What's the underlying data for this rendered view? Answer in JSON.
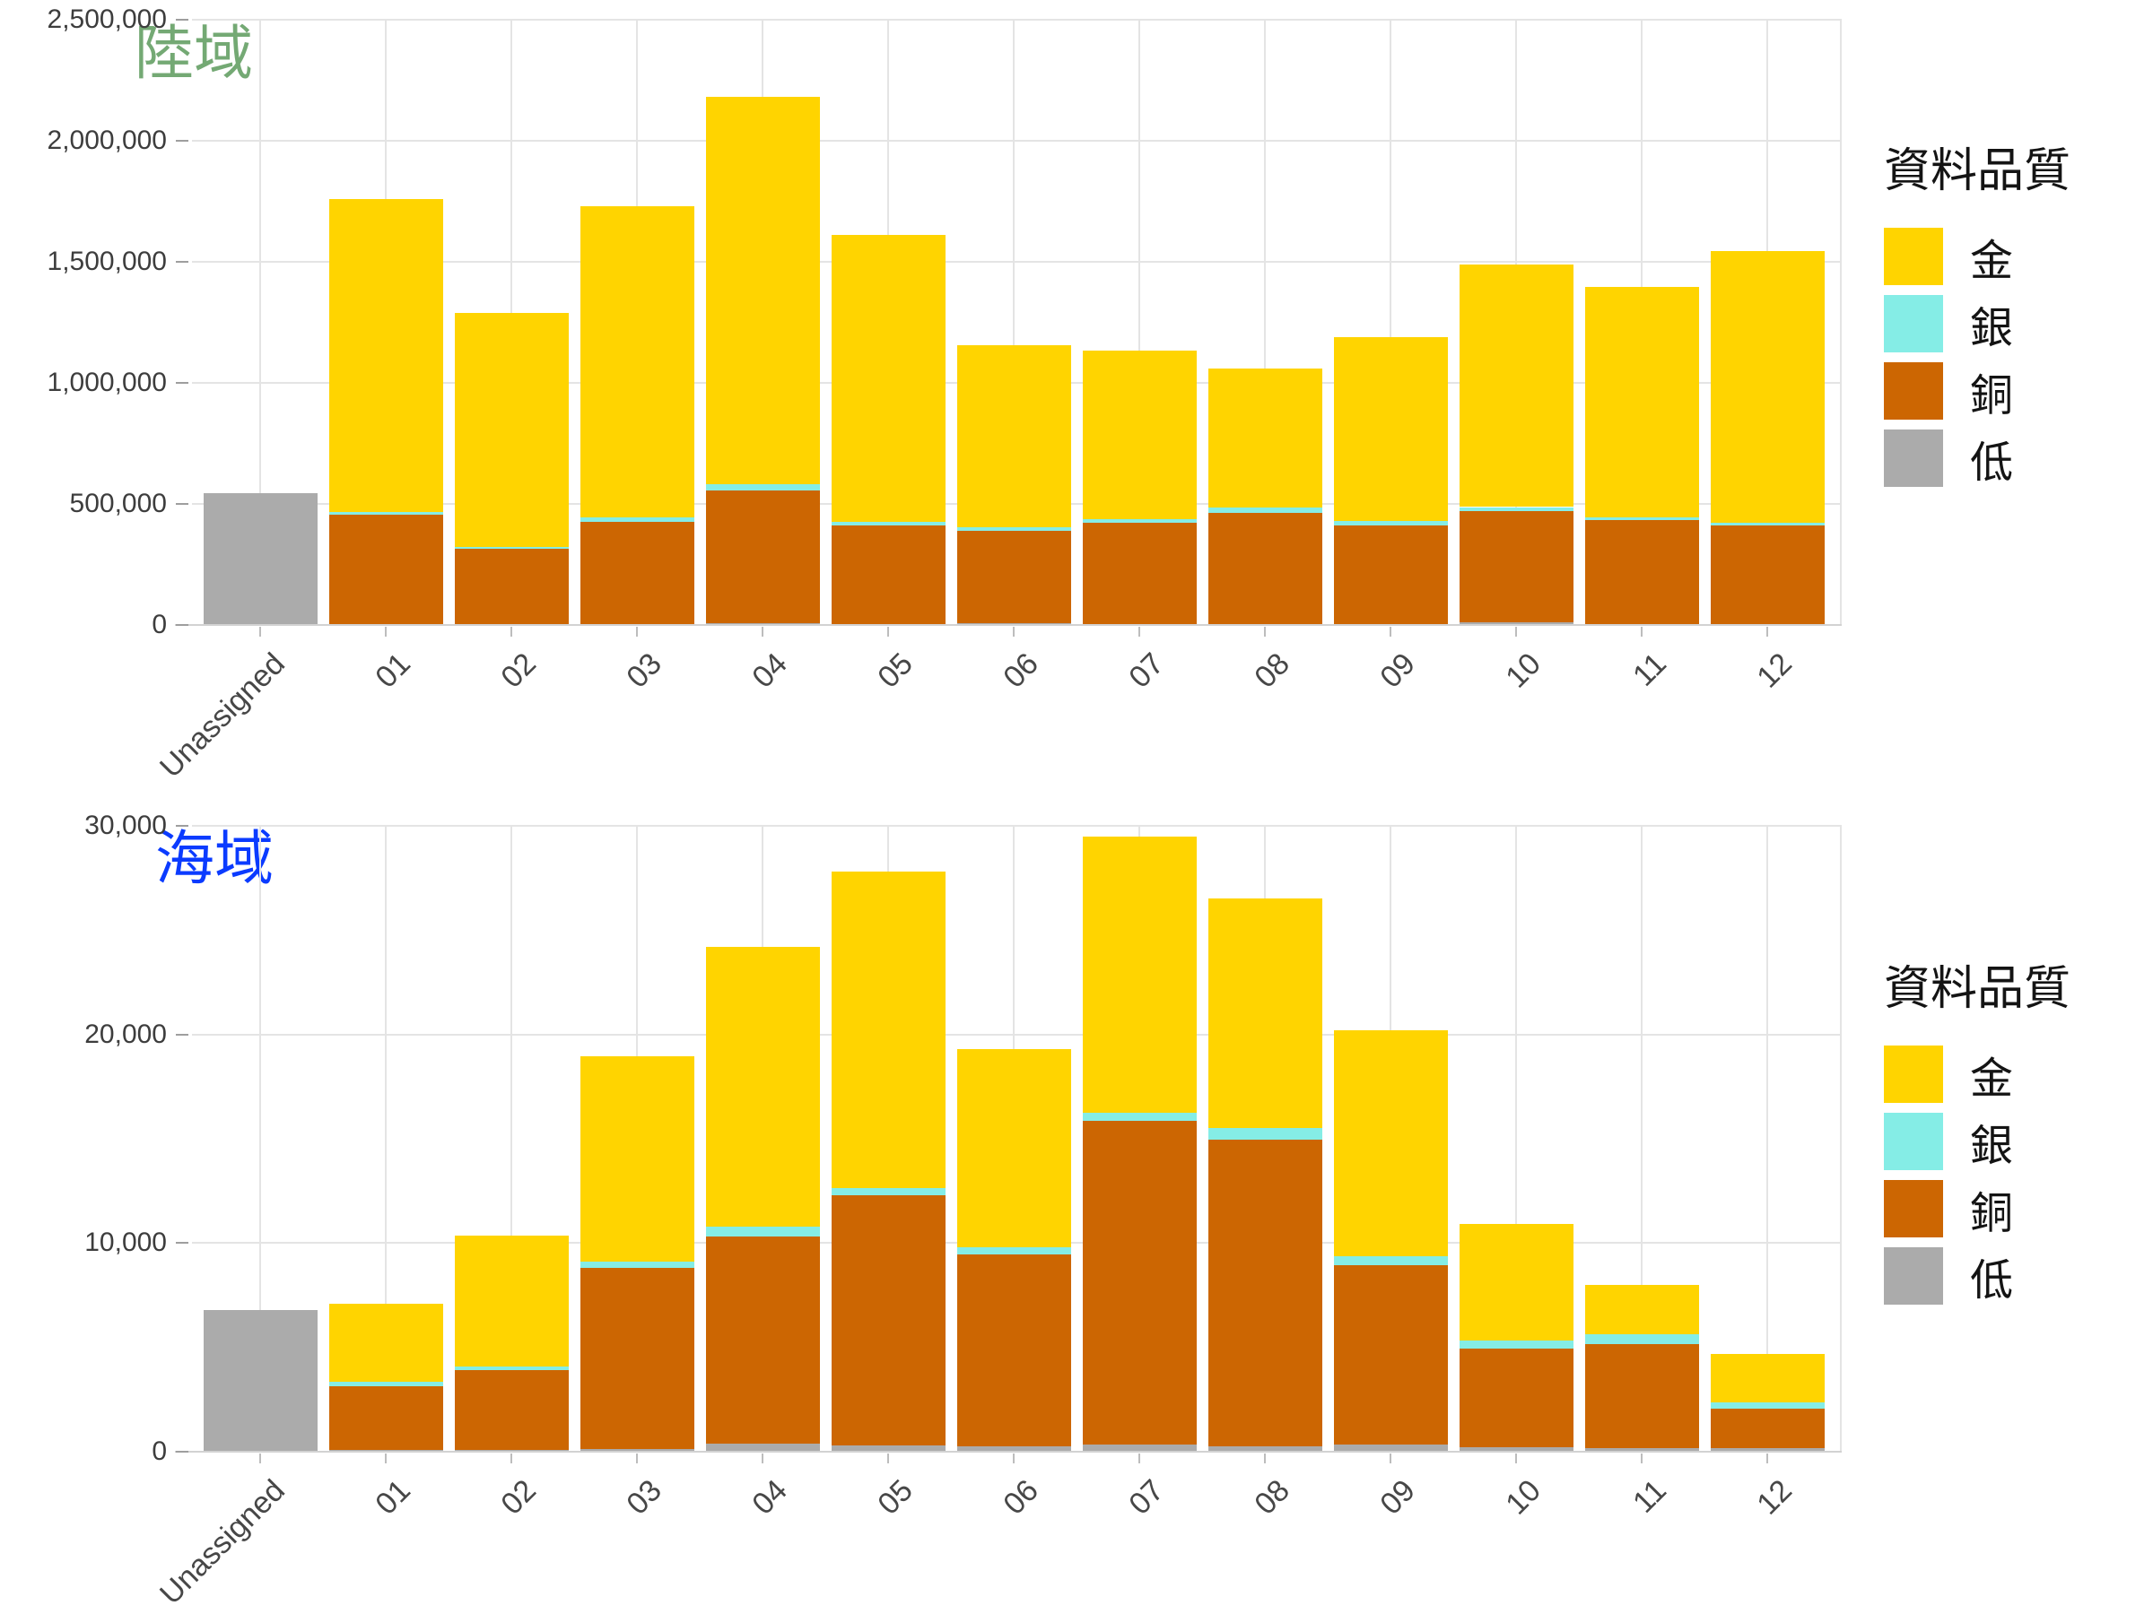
{
  "chart_data": [
    {
      "type": "bar",
      "stacked": true,
      "title": "陸域",
      "title_color": "#74a974",
      "legend": {
        "title": "資料品質",
        "items": [
          "金",
          "銀",
          "銅",
          "低"
        ]
      },
      "categories": [
        "Unassigned",
        "01",
        "02",
        "03",
        "04",
        "05",
        "06",
        "07",
        "08",
        "09",
        "10",
        "11",
        "12"
      ],
      "ylim": [
        0,
        2500000
      ],
      "grid": true,
      "legend_position": "right",
      "y_ticks": [
        {
          "value": 0,
          "label": "0"
        },
        {
          "value": 500000,
          "label": "500,000"
        },
        {
          "value": 1000000,
          "label": "1,000,000"
        },
        {
          "value": 1500000,
          "label": "1,500,000"
        },
        {
          "value": 2000000,
          "label": "2,000,000"
        },
        {
          "value": 2500000,
          "label": "2,500,000"
        }
      ],
      "series": [
        {
          "name": "低",
          "key": "low",
          "color": "#ababab",
          "values": [
            545000,
            0,
            0,
            0,
            8000,
            0,
            8000,
            0,
            0,
            0,
            10000,
            0,
            0
          ]
        },
        {
          "name": "銅",
          "key": "copper",
          "color": "#cc6602",
          "values": [
            0,
            455000,
            313000,
            426000,
            548000,
            410000,
            382000,
            422000,
            462000,
            410000,
            462000,
            435000,
            412000
          ]
        },
        {
          "name": "銀",
          "key": "silver",
          "color": "#85ede6",
          "values": [
            0,
            13000,
            10000,
            17000,
            26000,
            15000,
            13000,
            16000,
            25000,
            20000,
            15000,
            10000,
            10000
          ]
        },
        {
          "name": "金",
          "key": "gold",
          "color": "#ffd400",
          "values": [
            0,
            1292000,
            967000,
            1287000,
            1598000,
            1185000,
            752000,
            697000,
            573000,
            760000,
            1003000,
            950000,
            1123000
          ]
        }
      ],
      "totals": [
        545000,
        1760000,
        1290000,
        1730000,
        2180000,
        1610000,
        1155000,
        1135000,
        1060000,
        1190000,
        1490000,
        1395000,
        1545000
      ]
    },
    {
      "type": "bar",
      "stacked": true,
      "title": "海域",
      "title_color": "#0b3bff",
      "legend": {
        "title": "資料品質",
        "items": [
          "金",
          "銀",
          "銅",
          "低"
        ]
      },
      "categories": [
        "Unassigned",
        "01",
        "02",
        "03",
        "04",
        "05",
        "06",
        "07",
        "08",
        "09",
        "10",
        "11",
        "12"
      ],
      "ylim": [
        0,
        30000
      ],
      "grid": true,
      "legend_position": "right",
      "y_ticks": [
        {
          "value": 0,
          "label": "0"
        },
        {
          "value": 10000,
          "label": "10,000"
        },
        {
          "value": 20000,
          "label": "20,000"
        },
        {
          "value": 30000,
          "label": "30,000"
        }
      ],
      "series": [
        {
          "name": "低",
          "key": "low",
          "color": "#ababab",
          "values": [
            6800,
            100,
            100,
            150,
            400,
            300,
            250,
            350,
            250,
            350,
            200,
            160,
            160
          ]
        },
        {
          "name": "銅",
          "key": "copper",
          "color": "#cc6602",
          "values": [
            0,
            3050,
            3800,
            8650,
            9900,
            12000,
            9200,
            15500,
            14700,
            8600,
            4750,
            4980,
            1910
          ]
        },
        {
          "name": "銀",
          "key": "silver",
          "color": "#85ede6",
          "values": [
            0,
            200,
            200,
            300,
            500,
            350,
            350,
            400,
            550,
            400,
            380,
            500,
            280
          ]
        },
        {
          "name": "金",
          "key": "gold",
          "color": "#ffd400",
          "values": [
            0,
            3750,
            6250,
            9850,
            13400,
            15150,
            9500,
            13250,
            11000,
            10850,
            5570,
            2360,
            2350
          ]
        }
      ],
      "totals": [
        6800,
        7100,
        10350,
        18950,
        24200,
        27800,
        19300,
        29500,
        26500,
        20200,
        10900,
        8000,
        4700
      ]
    }
  ]
}
